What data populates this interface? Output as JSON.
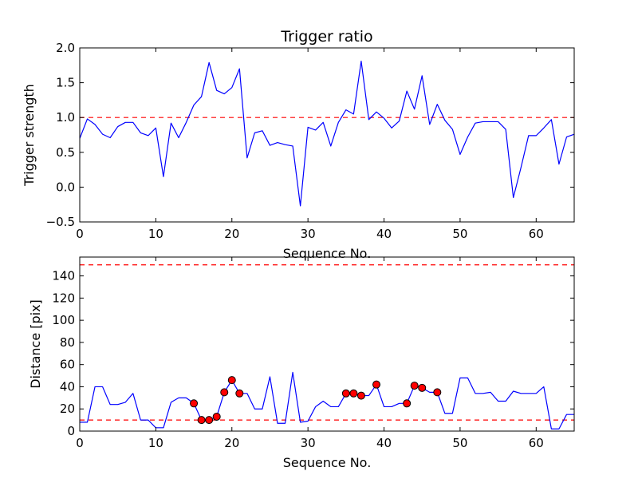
{
  "chart_data": [
    {
      "type": "line",
      "title": "Trigger ratio",
      "xlabel": "Sequence No.",
      "ylabel": "Trigger strength",
      "xlim": [
        0,
        65
      ],
      "ylim": [
        -0.5,
        2.0
      ],
      "xticks": [
        0,
        10,
        20,
        30,
        40,
        50,
        60
      ],
      "yticks": [
        -0.5,
        0.0,
        0.5,
        1.0,
        1.5,
        2.0
      ],
      "ytick_labels": [
        "−0.5",
        "0.0",
        "0.5",
        "1.0",
        "1.5",
        "2.0"
      ],
      "grid": false,
      "line_color": "#0000ff",
      "threshold_color": "#ff0000",
      "thresholds": [
        1.0
      ],
      "series": [
        {
          "x": [
            0,
            1,
            2,
            3,
            4,
            5,
            6,
            7,
            8,
            9,
            10,
            11,
            12,
            13,
            14,
            15,
            16,
            17,
            18,
            19,
            20,
            21,
            22,
            23,
            24,
            25,
            26,
            27,
            28,
            29,
            30,
            31,
            32,
            33,
            34,
            35,
            36,
            37,
            38,
            39,
            40,
            41,
            42,
            43,
            44,
            45,
            46,
            47,
            48,
            49,
            50,
            51,
            52,
            53,
            54,
            55,
            56,
            57,
            58,
            59,
            60,
            61,
            62,
            63,
            64,
            65
          ],
          "y": [
            0.7,
            0.98,
            0.9,
            0.76,
            0.71,
            0.87,
            0.93,
            0.93,
            0.78,
            0.74,
            0.85,
            0.15,
            0.92,
            0.71,
            0.93,
            1.18,
            1.3,
            1.79,
            1.39,
            1.34,
            1.43,
            1.7,
            0.42,
            0.78,
            0.81,
            0.6,
            0.64,
            0.61,
            0.59,
            -0.27,
            0.86,
            0.82,
            0.93,
            0.59,
            0.93,
            1.11,
            1.05,
            1.81,
            0.97,
            1.08,
            0.99,
            0.85,
            0.95,
            1.38,
            1.12,
            1.6,
            0.9,
            1.19,
            0.96,
            0.83,
            0.47,
            0.72,
            0.92,
            0.94,
            0.94,
            0.94,
            0.83,
            -0.15,
            0.28,
            0.74,
            0.74,
            0.85,
            0.97,
            0.33,
            0.72,
            0.76
          ]
        }
      ]
    },
    {
      "type": "line",
      "title": "",
      "xlabel": "Sequence No.",
      "ylabel": "Distance [pix]",
      "xlim": [
        0,
        65
      ],
      "ylim": [
        0,
        157
      ],
      "xticks": [
        0,
        10,
        20,
        30,
        40,
        50,
        60
      ],
      "yticks": [
        0,
        20,
        40,
        60,
        80,
        100,
        120,
        140
      ],
      "grid": false,
      "line_color": "#0000ff",
      "marker_color": "#ff0000",
      "threshold_color": "#ff0000",
      "thresholds": [
        10,
        150
      ],
      "series": [
        {
          "x": [
            0,
            1,
            2,
            3,
            4,
            5,
            6,
            7,
            8,
            9,
            10,
            11,
            12,
            13,
            14,
            15,
            16,
            17,
            18,
            19,
            20,
            21,
            22,
            23,
            24,
            25,
            26,
            27,
            28,
            29,
            30,
            31,
            32,
            33,
            34,
            35,
            36,
            37,
            38,
            39,
            40,
            41,
            42,
            43,
            44,
            45,
            46,
            47,
            48,
            49,
            50,
            51,
            52,
            53,
            54,
            55,
            56,
            57,
            58,
            59,
            60,
            61,
            62,
            63,
            64,
            65
          ],
          "y": [
            8,
            8,
            40,
            40,
            24,
            24,
            26,
            34,
            10,
            10,
            3,
            3,
            26,
            30,
            30,
            25,
            10,
            10,
            13,
            35,
            46,
            34,
            34,
            20,
            20,
            49,
            7,
            7,
            53,
            8,
            9,
            22,
            27,
            22,
            22,
            34,
            34,
            32,
            32,
            42,
            22,
            22,
            25,
            25,
            41,
            39,
            35,
            35,
            16,
            16,
            48,
            48,
            34,
            34,
            35,
            27,
            27,
            36,
            34,
            34,
            34,
            40,
            2,
            2,
            15,
            15
          ]
        }
      ],
      "markers": {
        "x": [
          15,
          16,
          17,
          18,
          19,
          20,
          21,
          35,
          36,
          37,
          39,
          43,
          44,
          45,
          47
        ],
        "y": [
          25,
          10,
          10,
          13,
          35,
          46,
          34,
          34,
          34,
          32,
          42,
          25,
          41,
          39,
          35
        ]
      }
    }
  ]
}
